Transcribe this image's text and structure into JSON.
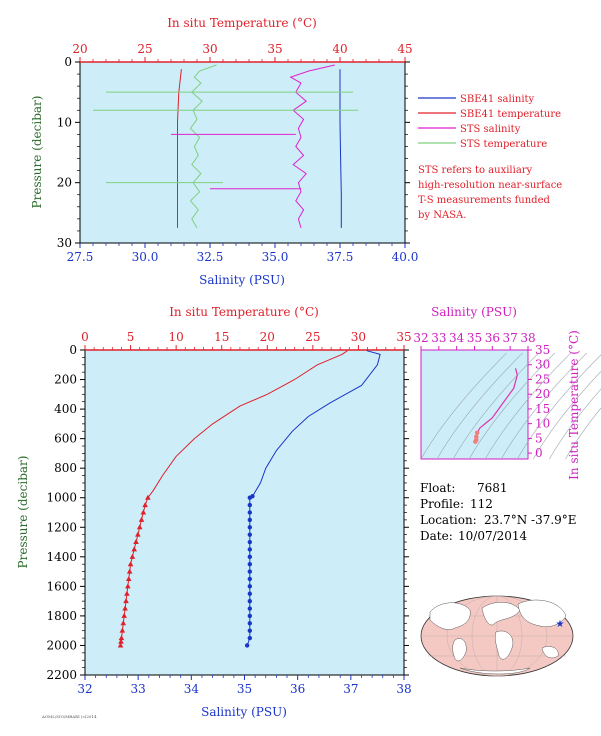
{
  "colors": {
    "salinity": "#1a35c8",
    "temperature": "#e0202a",
    "sts_salinity": "#e020d0",
    "sts_temperature": "#7fd07f",
    "panel_bg": "#cdeef8",
    "pressure_label": "#2a6a2a",
    "axis_red": "#e0202a",
    "axis_blue": "#1a35c8",
    "axis_magenta": "#d020c0"
  },
  "chart_data": [
    {
      "id": "near-surface",
      "type": "line",
      "title": "",
      "top_axis_label": "In situ Temperature (°C)",
      "bottom_axis_label": "Salinity (PSU)",
      "ylabel": "Pressure (decibar)",
      "top_ticks": [
        "20",
        "25",
        "30",
        "35",
        "40",
        "45"
      ],
      "bottom_ticks": [
        "27.5",
        "30.0",
        "32.5",
        "35.0",
        "37.5",
        "40.0"
      ],
      "y_ticks": [
        "0",
        "10",
        "20",
        "30"
      ],
      "temp_range": [
        20,
        45
      ],
      "sal_range": [
        27.5,
        40.0
      ],
      "pressure_range": [
        0,
        30
      ],
      "y_reversed": true,
      "legend": [
        {
          "label": "SBE41 salinity",
          "key": "salinity"
        },
        {
          "label": "SBE41 temperature",
          "key": "temperature"
        },
        {
          "label": "STS salinity",
          "key": "sts_salinity"
        },
        {
          "label": "STS temperature",
          "key": "sts_temperature"
        }
      ],
      "note_lines": [
        "STS refers to auxiliary",
        "high-resolution near-surface",
        "T-S measurements funded",
        "by NASA."
      ],
      "series": [
        {
          "name": "SBE41 salinity",
          "axis": "salinity",
          "x": [
            37.5,
            37.5,
            37.5,
            37.52,
            37.55,
            37.55
          ],
          "y": [
            1.2,
            5,
            10,
            15,
            22,
            27.5
          ]
        },
        {
          "name": "SBE41 temperature",
          "axis": "temperature",
          "x": [
            27.8,
            27.6,
            27.5,
            27.5,
            27.5,
            27.5
          ],
          "y": [
            1.2,
            5,
            10,
            15,
            22,
            27.5
          ]
        },
        {
          "name": "STS salinity",
          "axis": "salinity",
          "x": [
            37.3,
            36.3,
            35.6,
            36.0,
            35.8,
            36.2,
            35.7,
            36.1,
            35.9,
            36.0,
            35.8,
            36.1,
            35.7,
            36.2,
            35.9,
            36.0,
            35.8,
            36.1,
            35.9,
            36.0
          ],
          "y": [
            0.5,
            1.5,
            2.5,
            3.5,
            5,
            6.5,
            8,
            9.5,
            11,
            12.5,
            14,
            15.5,
            17,
            18.5,
            20,
            21.5,
            23,
            24.5,
            26,
            27.5
          ]
        },
        {
          "name": "STS temperature",
          "axis": "temperature",
          "x": [
            30.5,
            29.2,
            28.8,
            29.3,
            28.6,
            29.4,
            28.7,
            29.0,
            28.5,
            29.2,
            28.8,
            29.1,
            28.6,
            29.3,
            28.7,
            29.2,
            28.5,
            29.1,
            28.6,
            29.0
          ],
          "y": [
            0.5,
            1.5,
            2.5,
            3.5,
            5,
            6.5,
            8,
            9.5,
            11,
            12.5,
            14,
            15.5,
            17,
            18.5,
            20,
            21.5,
            23,
            24.5,
            26,
            27.5
          ]
        }
      ]
    },
    {
      "id": "full-profile",
      "type": "line",
      "title": "",
      "top_axis_label": "In situ Temperature (°C)",
      "bottom_axis_label": "Salinity (PSU)",
      "ylabel": "Pressure (decibar)",
      "top_ticks": [
        "0",
        "5",
        "10",
        "15",
        "20",
        "25",
        "30",
        "35"
      ],
      "bottom_ticks": [
        "32",
        "33",
        "34",
        "35",
        "36",
        "37",
        "38"
      ],
      "y_ticks": [
        "0",
        "200",
        "400",
        "600",
        "800",
        "1000",
        "1200",
        "1400",
        "1600",
        "1800",
        "2000",
        "2200"
      ],
      "temp_range": [
        0,
        35
      ],
      "sal_range": [
        32,
        38
      ],
      "pressure_range": [
        0,
        2200
      ],
      "y_reversed": true,
      "series": [
        {
          "name": "Salinity",
          "axis": "salinity",
          "x": [
            37.3,
            37.55,
            37.5,
            37.2,
            36.9,
            36.6,
            36.2,
            35.9,
            35.6,
            35.4,
            35.3,
            35.15,
            35.1,
            35.1,
            35.1,
            35.1,
            35.1,
            35.1,
            35.1,
            35.1,
            35.1,
            35.1,
            35.1,
            35.1,
            35.1,
            35.1,
            35.1,
            35.1,
            35.1,
            35.1,
            35.1,
            35.1,
            35.05
          ],
          "y": [
            5,
            30,
            100,
            240,
            300,
            360,
            450,
            550,
            680,
            800,
            900,
            990,
            1000,
            1050,
            1100,
            1150,
            1200,
            1250,
            1300,
            1350,
            1400,
            1450,
            1500,
            1550,
            1600,
            1650,
            1700,
            1750,
            1800,
            1850,
            1900,
            1950,
            2000
          ]
        },
        {
          "name": "Temperature",
          "axis": "temperature",
          "x": [
            28.8,
            28.2,
            25.5,
            23.0,
            20.0,
            17.0,
            14.0,
            12.0,
            10.0,
            8.5,
            7.5,
            6.9,
            6.6,
            6.4,
            6.2,
            6.0,
            5.8,
            5.6,
            5.4,
            5.2,
            5.0,
            4.9,
            4.8,
            4.7,
            4.6,
            4.5,
            4.4,
            4.3,
            4.2,
            4.1,
            4.0,
            3.95,
            3.9
          ],
          "y": [
            5,
            30,
            100,
            200,
            300,
            380,
            500,
            600,
            720,
            850,
            950,
            1000,
            1050,
            1100,
            1150,
            1200,
            1250,
            1300,
            1350,
            1400,
            1450,
            1500,
            1550,
            1600,
            1650,
            1700,
            1750,
            1800,
            1850,
            1900,
            1950,
            1975,
            2000
          ]
        }
      ]
    },
    {
      "id": "ts-diagram",
      "type": "scatter",
      "top_axis_label": "Salinity (PSU)",
      "right_axis_label": "In situ Temperature (°C)",
      "top_ticks": [
        "32",
        "33",
        "34",
        "35",
        "36",
        "37",
        "38"
      ],
      "right_ticks": [
        "0",
        "5",
        "10",
        "15",
        "20",
        "25",
        "30",
        "35"
      ],
      "sal_range": [
        32,
        38
      ],
      "temp_range": [
        -2,
        35
      ],
      "x": [
        37.3,
        37.4,
        37.2,
        36.6,
        36.0,
        35.6,
        35.3,
        35.15,
        35.1,
        35.1,
        35.05
      ],
      "y": [
        28.8,
        26.5,
        22.0,
        17.0,
        12.0,
        10.0,
        8.5,
        6.9,
        5.5,
        4.5,
        3.9
      ]
    }
  ],
  "info": {
    "float_label": "Float:",
    "float_value": "7681",
    "profile_label": "Profile:",
    "profile_value": "112",
    "location_label": "Location:",
    "location_value": "23.7°N  -37.9°E",
    "date_label": "Date:",
    "date_value": "10/07/2014"
  },
  "footer_text": "AOML/SIO/MBARI  (c)2014"
}
